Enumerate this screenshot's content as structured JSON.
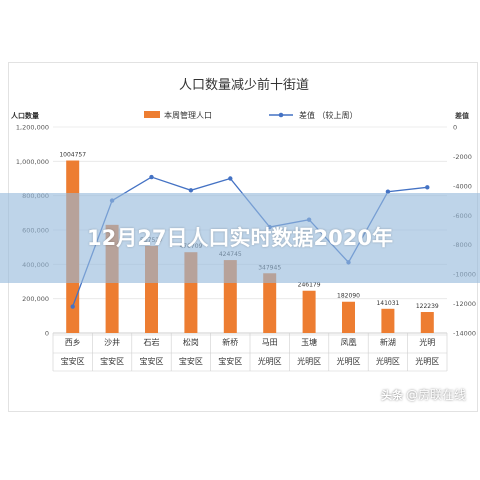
{
  "banner": {
    "title": "12月27日人口实时数据2020年"
  },
  "watermark": {
    "logo": "头条",
    "text": "@房联在线"
  },
  "chart_data": {
    "type": "bar",
    "title": "人口数量减少前十街道",
    "ylabel": "人口数量",
    "y2label": "差值",
    "ylim": [
      0,
      1200000
    ],
    "y2lim": [
      -14000,
      0
    ],
    "yticks": [
      "0",
      "200,000",
      "400,000",
      "600,000",
      "800,000",
      "1,000,000",
      "1,200,000"
    ],
    "y2ticks": [
      "0",
      "-2000",
      "-4000",
      "-6000",
      "-8000",
      "-10000",
      "-12000",
      "-14000"
    ],
    "categories": [
      "西乡",
      "沙井",
      "石岩",
      "松岗",
      "新桥",
      "马田",
      "玉塘",
      "凤凰",
      "新湖",
      "光明"
    ],
    "districts": [
      "宝安区",
      "宝安区",
      "宝安区",
      "宝安区",
      "宝安区",
      "光明区",
      "光明区",
      "光明区",
      "光明区",
      "光明区"
    ],
    "legend": {
      "bar": "本周管理人口",
      "line": "差值 （较上周）"
    },
    "bar_series": {
      "name": "本周管理人口",
      "color": "#ed7d31",
      "values": [
        1004757,
        630000,
        507527,
        470709,
        424745,
        347945,
        246179,
        182090,
        141031,
        122239
      ],
      "labels": [
        "1004757",
        "",
        "507527",
        "470709",
        "424745",
        "347945",
        "246179",
        "182090",
        "141031",
        "122239"
      ]
    },
    "line_series": {
      "name": "差值 （较上周）",
      "color": "#4472c4",
      "values": [
        -12200,
        -5000,
        -3400,
        -4300,
        -3500,
        -6800,
        -6300,
        -9200,
        -4400,
        -4100
      ]
    },
    "grid": true
  }
}
